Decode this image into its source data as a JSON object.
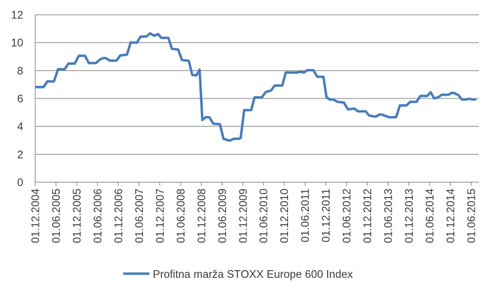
{
  "chart_data": {
    "type": "line",
    "title": "",
    "xlabel": "",
    "ylabel": "",
    "ylim": [
      0,
      12
    ],
    "yticks": [
      "0",
      "2",
      "4",
      "6",
      "8",
      "10",
      "12"
    ],
    "grid": true,
    "legend_position": "bottom",
    "x_unit": "months since 01.12.2004",
    "xticks": [
      "01.12.2004",
      "01.06.2005",
      "01.12.2005",
      "01.06.2006",
      "01.12.2006",
      "01.06.2007",
      "01.12.2007",
      "01.06.2008",
      "01.12.2008",
      "01.06.2009",
      "01.12.2009",
      "01.06.2010",
      "01.12.2010",
      "01.06.2011",
      "01.12.2011",
      "01.06.2012",
      "01.12.2012",
      "01.06.2013",
      "01.12.2013",
      "01.06.2014",
      "01.12.2014",
      "01.06.2015"
    ],
    "series": [
      {
        "name": "Profitna marža STOXX Europe 600 Index",
        "color": "#4a7ebb",
        "points": [
          [
            0,
            6.82
          ],
          [
            2.4,
            6.82
          ],
          [
            3.5,
            7.22
          ],
          [
            5.4,
            7.22
          ],
          [
            6.6,
            8.1
          ],
          [
            8.5,
            8.1
          ],
          [
            9.6,
            8.5
          ],
          [
            11.4,
            8.5
          ],
          [
            12.6,
            9.06
          ],
          [
            14.4,
            9.06
          ],
          [
            15.5,
            8.54
          ],
          [
            17.5,
            8.54
          ],
          [
            18.7,
            8.79
          ],
          [
            19.7,
            8.9
          ],
          [
            20.4,
            8.9
          ],
          [
            21.6,
            8.72
          ],
          [
            23.5,
            8.72
          ],
          [
            24.6,
            9.09
          ],
          [
            26.5,
            9.14
          ],
          [
            27.6,
            10.02
          ],
          [
            29.4,
            10.0
          ],
          [
            30.4,
            10.42
          ],
          [
            32.2,
            10.45
          ],
          [
            33.2,
            10.67
          ],
          [
            34.4,
            10.5
          ],
          [
            35.5,
            10.62
          ],
          [
            36.5,
            10.34
          ],
          [
            38.5,
            10.34
          ],
          [
            39.5,
            9.56
          ],
          [
            41.3,
            9.51
          ],
          [
            42.4,
            8.77
          ],
          [
            44.4,
            8.7
          ],
          [
            45.4,
            7.69
          ],
          [
            46.6,
            7.66
          ],
          [
            47.5,
            8.07
          ],
          [
            48.3,
            4.46
          ],
          [
            49.3,
            4.66
          ],
          [
            50.3,
            4.66
          ],
          [
            51.5,
            4.19
          ],
          [
            53.4,
            4.16
          ],
          [
            54.4,
            3.11
          ],
          [
            56.2,
            2.98
          ],
          [
            57.4,
            3.11
          ],
          [
            58.9,
            3.11
          ],
          [
            59.4,
            3.18
          ],
          [
            60.4,
            5.17
          ],
          [
            62.4,
            5.17
          ],
          [
            63.4,
            6.08
          ],
          [
            65.5,
            6.08
          ],
          [
            66.6,
            6.46
          ],
          [
            68.2,
            6.58
          ],
          [
            69.2,
            6.93
          ],
          [
            71.4,
            6.93
          ],
          [
            72.4,
            7.86
          ],
          [
            75.6,
            7.86
          ],
          [
            76.7,
            7.91
          ],
          [
            77.7,
            7.86
          ],
          [
            78.7,
            8.03
          ],
          [
            80.4,
            8.03
          ],
          [
            81.5,
            7.56
          ],
          [
            83.3,
            7.56
          ],
          [
            84.2,
            6.09
          ],
          [
            85.1,
            5.93
          ],
          [
            86.1,
            5.93
          ],
          [
            87.4,
            5.76
          ],
          [
            89.2,
            5.71
          ],
          [
            90.4,
            5.22
          ],
          [
            92.2,
            5.28
          ],
          [
            93.3,
            5.08
          ],
          [
            95.5,
            5.08
          ],
          [
            96.5,
            4.78
          ],
          [
            98.4,
            4.7
          ],
          [
            99.6,
            4.86
          ],
          [
            100.4,
            4.83
          ],
          [
            102.3,
            4.66
          ],
          [
            104.3,
            4.66
          ],
          [
            105.4,
            5.5
          ],
          [
            107.3,
            5.5
          ],
          [
            108.4,
            5.76
          ],
          [
            110.2,
            5.76
          ],
          [
            111.3,
            6.18
          ],
          [
            113.3,
            6.18
          ],
          [
            114.3,
            6.45
          ],
          [
            115.3,
            6.01
          ],
          [
            116.2,
            6.06
          ],
          [
            117.5,
            6.26
          ],
          [
            119.4,
            6.26
          ],
          [
            120.4,
            6.41
          ],
          [
            121.4,
            6.36
          ],
          [
            122.3,
            6.24
          ],
          [
            123.3,
            5.93
          ],
          [
            124.5,
            5.93
          ],
          [
            125.5,
            5.98
          ],
          [
            126.4,
            5.93
          ],
          [
            127.5,
            5.93
          ]
        ]
      }
    ]
  }
}
